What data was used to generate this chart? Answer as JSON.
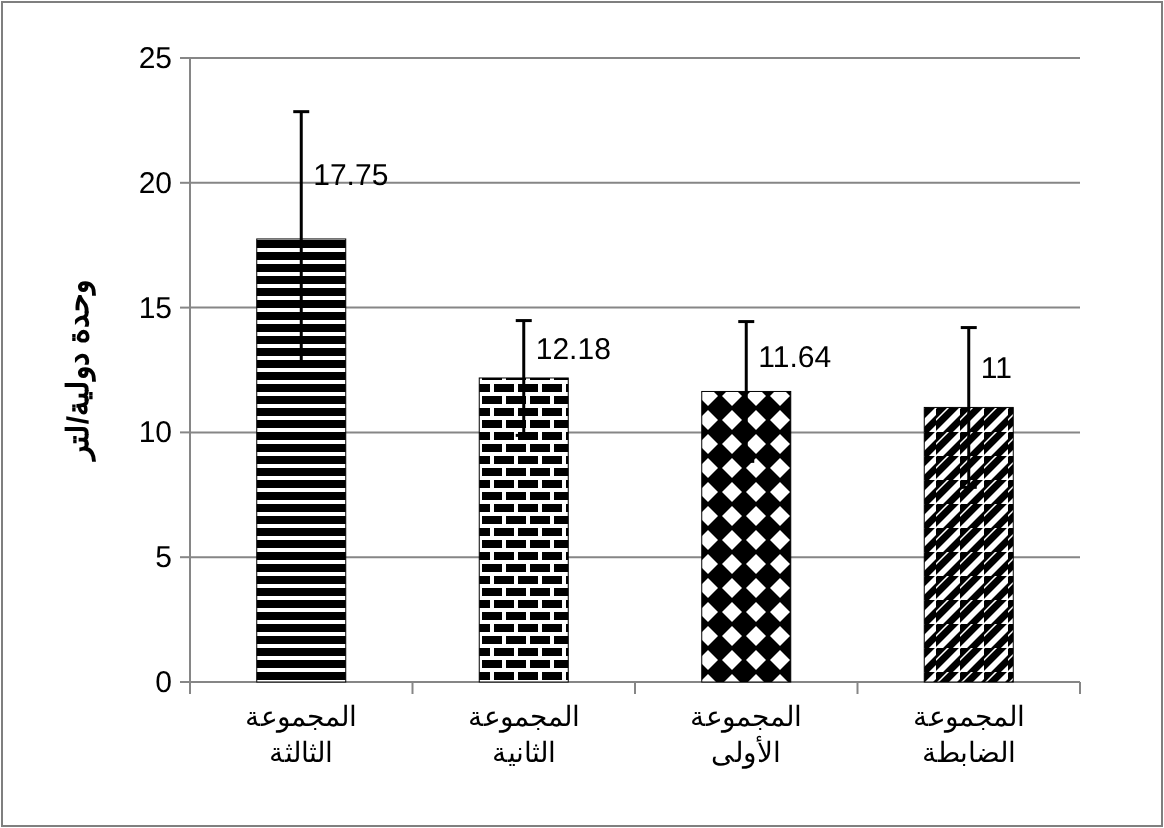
{
  "chart_data": {
    "type": "bar",
    "ylabel": "وحدة دولية/لتر",
    "categories": [
      "المجموعة الثالثة",
      "المجموعة الثانية",
      "المجموعة الأولى",
      "المجموعة الضابطة"
    ],
    "values": [
      17.75,
      12.18,
      11.64,
      11
    ],
    "errors": [
      5.1,
      2.3,
      2.8,
      3.2
    ],
    "color": "#000000",
    "ylim": [
      0,
      25
    ],
    "yticks": [
      0,
      5,
      10,
      15,
      20,
      25
    ],
    "grid": "y",
    "data_labels": true
  }
}
